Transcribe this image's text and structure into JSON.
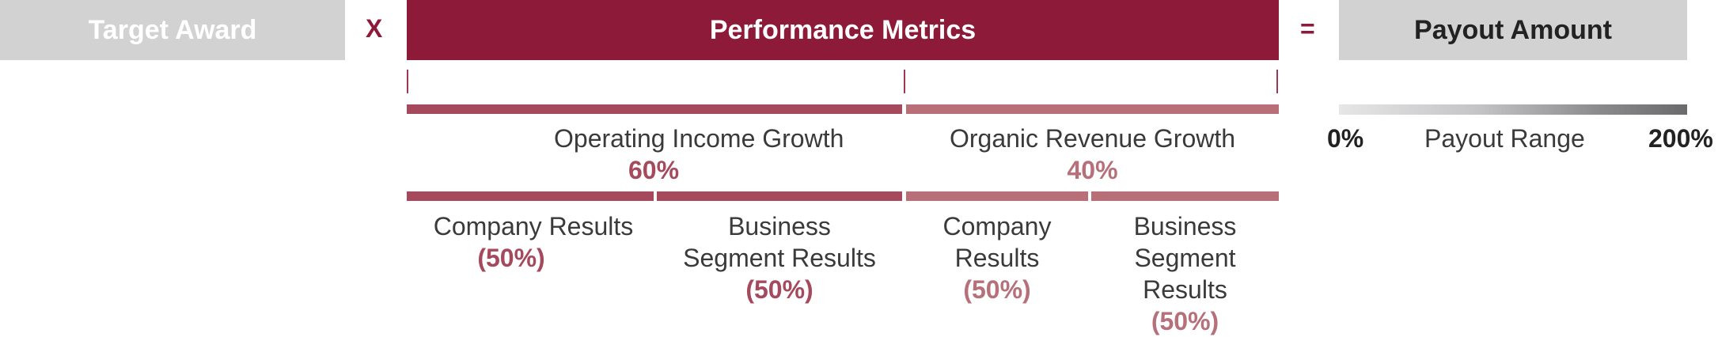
{
  "header": {
    "target_award": "Target Award",
    "times": "X",
    "performance_metrics": "Performance Metrics",
    "equals": "=",
    "payout_amount": "Payout Amount"
  },
  "colors": {
    "maroon": "#8c1a38",
    "bar_dark": "#a54a5d",
    "bar_light": "#b86f78",
    "grey_box": "#d2d2d3"
  },
  "metrics": {
    "operating_income": {
      "label": "Operating Income Growth",
      "weight": "60%",
      "children": [
        {
          "lines": [
            "Company Results"
          ],
          "weight": "(50%)"
        },
        {
          "lines": [
            "Business",
            "Segment Results"
          ],
          "weight": "(50%)"
        }
      ]
    },
    "organic_revenue": {
      "label": "Organic Revenue Growth",
      "weight": "40%",
      "children": [
        {
          "lines": [
            "Company",
            "Results"
          ],
          "weight": "(50%)"
        },
        {
          "lines": [
            "Business",
            "Segment",
            "Results"
          ],
          "weight": "(50%)"
        }
      ]
    }
  },
  "payout_range": {
    "min": "0%",
    "label": "Payout Range",
    "max": "200%"
  }
}
